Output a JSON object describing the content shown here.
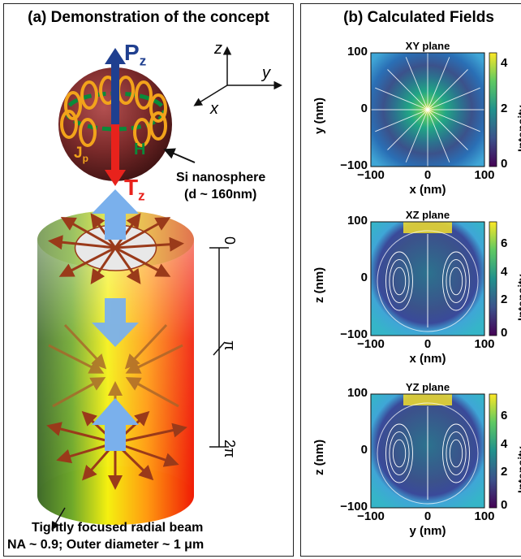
{
  "panel_a": {
    "title": "(a) Demonstration of the concept",
    "p_label": "P",
    "p_sub": "z",
    "t_label": "T",
    "t_sub": "z",
    "h_label": "H",
    "jp_label": "J",
    "jp_sub": "p",
    "axis_z": "z",
    "axis_y": "y",
    "axis_x": "x",
    "nanosphere_label_1": "Si nanosphere",
    "nanosphere_label_2": "(d ~ 160nm)",
    "phase_0": "0",
    "phase_pi": "π",
    "phase_2pi": "2π",
    "beam_label_1": "Tightly focused radial beam",
    "beam_label_2": "NA ~ 0.9; Outer diameter ~ 1 μm"
  },
  "panel_b": {
    "title": "(b) Calculated Fields",
    "plots": [
      {
        "title": "XY plane",
        "xlabel": "x (nm)",
        "ylabel": "y (nm)",
        "cb_ticks": [
          "4",
          "2",
          "0"
        ],
        "cb_label": "Intensity"
      },
      {
        "title": "XZ plane",
        "xlabel": "x (nm)",
        "ylabel": "z (nm)",
        "cb_ticks": [
          "6",
          "4",
          "2",
          "0"
        ],
        "cb_label": "Intensity"
      },
      {
        "title": "YZ plane",
        "xlabel": "y (nm)",
        "ylabel": "z (nm)",
        "cb_ticks": [
          "6",
          "4",
          "2",
          "0"
        ],
        "cb_label": "Intensity"
      }
    ],
    "xticks": [
      "−100",
      "0",
      "100"
    ],
    "yticks": [
      "100",
      "0",
      "−100"
    ]
  },
  "colors": {
    "p_blue": "#1f3f8f",
    "t_red": "#e8221c",
    "h_green": "#0a8a3a",
    "jp_orange": "#f2a31b",
    "sphere": "#7a2a2a",
    "arrow_blue": "#7ab0ec",
    "arrow_brown": "#9a3a1a"
  }
}
